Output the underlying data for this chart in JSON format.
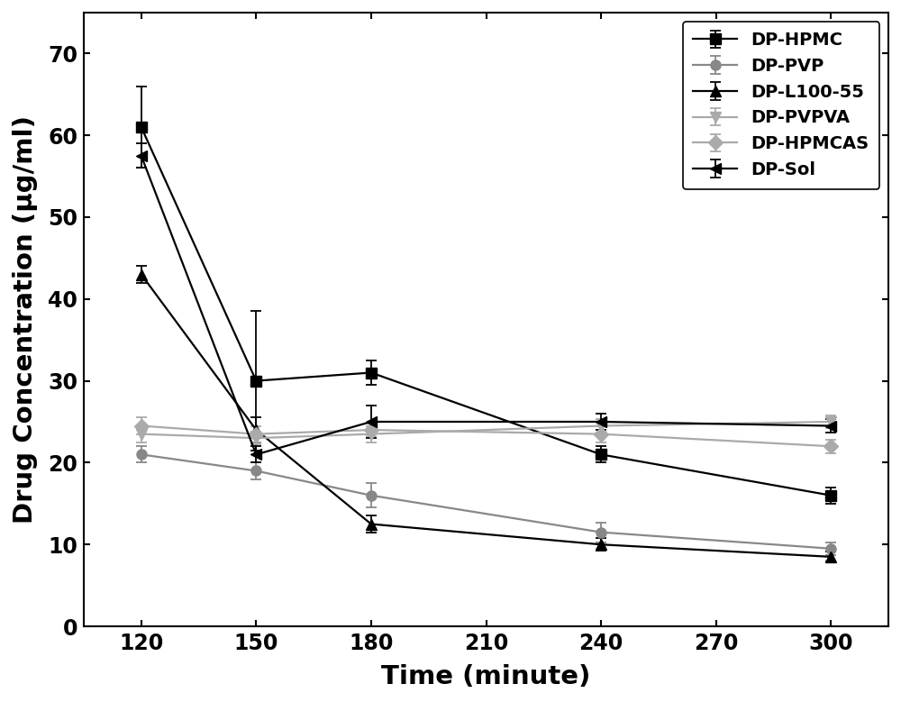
{
  "x": [
    120,
    150,
    180,
    240,
    300
  ],
  "series": [
    {
      "label": "DP-HPMC",
      "color": "#000000",
      "marker": "s",
      "markersize": 8,
      "linewidth": 1.6,
      "y": [
        61.0,
        30.0,
        31.0,
        21.0,
        16.0
      ],
      "yerr": [
        5.0,
        8.5,
        1.5,
        1.0,
        1.0
      ]
    },
    {
      "label": "DP-PVP",
      "color": "#888888",
      "marker": "o",
      "markersize": 8,
      "linewidth": 1.6,
      "y": [
        21.0,
        19.0,
        16.0,
        11.5,
        9.5
      ],
      "yerr": [
        1.0,
        1.0,
        1.5,
        1.2,
        0.8
      ]
    },
    {
      "label": "DP-L100-55",
      "color": "#000000",
      "marker": "^",
      "markersize": 8,
      "linewidth": 1.6,
      "y": [
        43.0,
        24.0,
        12.5,
        10.0,
        8.5
      ],
      "yerr": [
        1.0,
        1.5,
        1.0,
        0.8,
        0.6
      ]
    },
    {
      "label": "DP-PVPVA",
      "color": "#aaaaaa",
      "marker": "v",
      "markersize": 8,
      "linewidth": 1.6,
      "y": [
        23.5,
        23.0,
        23.5,
        24.5,
        25.0
      ],
      "yerr": [
        1.0,
        0.8,
        1.0,
        0.8,
        0.8
      ]
    },
    {
      "label": "DP-HPMCAS",
      "color": "#aaaaaa",
      "marker": "D",
      "markersize": 8,
      "linewidth": 1.6,
      "y": [
        24.5,
        23.5,
        24.0,
        23.5,
        22.0
      ],
      "yerr": [
        1.0,
        1.0,
        0.8,
        1.0,
        0.8
      ]
    },
    {
      "label": "DP-Sol",
      "color": "#000000",
      "marker": "<",
      "markersize": 8,
      "linewidth": 1.6,
      "y": [
        57.5,
        21.0,
        25.0,
        25.0,
        24.5
      ],
      "yerr": [
        1.5,
        1.0,
        2.0,
        1.0,
        0.8
      ]
    }
  ],
  "xlabel": "Time (minute)",
  "ylabel": "Drug Concentration (μg/ml)",
  "xlim": [
    105,
    315
  ],
  "ylim": [
    0,
    75
  ],
  "xticks": [
    120,
    150,
    180,
    210,
    240,
    270,
    300
  ],
  "yticks": [
    0,
    10,
    20,
    30,
    40,
    50,
    60,
    70
  ],
  "legend_loc": "upper right",
  "figwidth": 10.0,
  "figheight": 7.79,
  "dpi": 100
}
